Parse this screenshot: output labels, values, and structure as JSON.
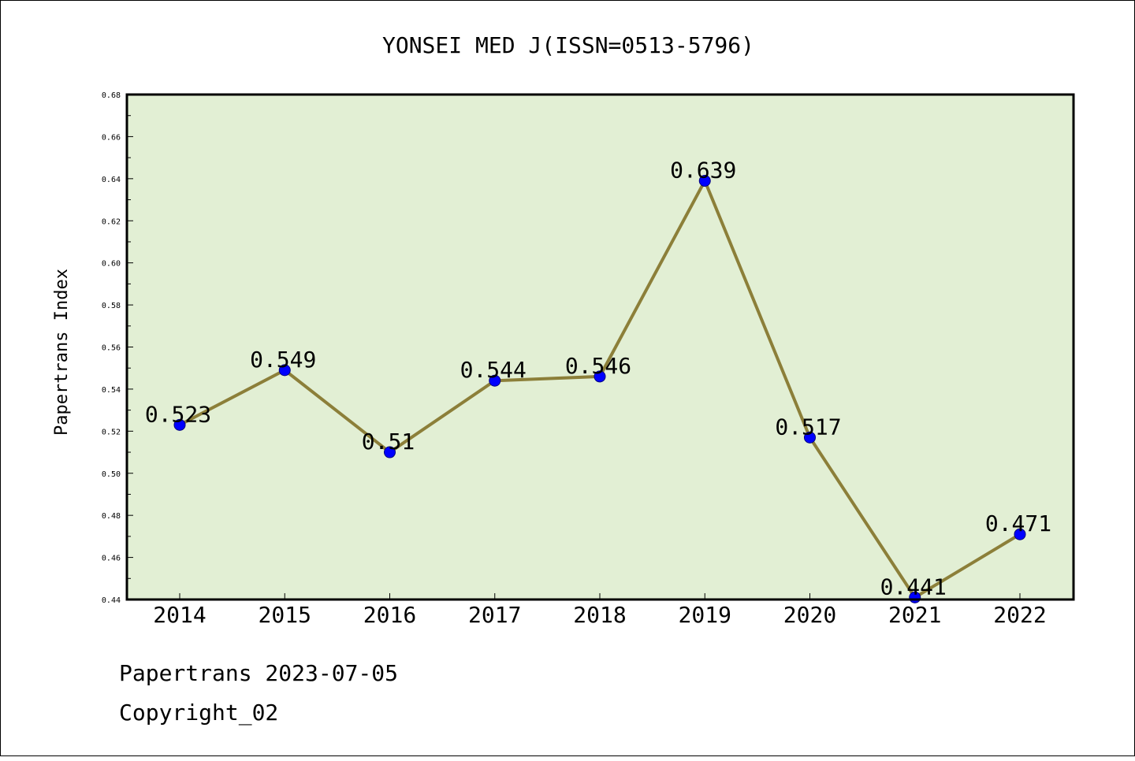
{
  "colors": {
    "plot_bg": "#e2efd4",
    "line": "#8c7f39",
    "marker": "#0000ff",
    "page_bg": "#ffffff",
    "axis": "#000000"
  },
  "chart_data": {
    "type": "line",
    "title": "YONSEI MED J(ISSN=0513-5796)",
    "xlabel": "",
    "ylabel": "Papertrans Index",
    "categories": [
      "2014",
      "2015",
      "2016",
      "2017",
      "2018",
      "2019",
      "2020",
      "2021",
      "2022"
    ],
    "values": [
      0.523,
      0.549,
      0.51,
      0.544,
      0.546,
      0.639,
      0.517,
      0.441,
      0.471
    ],
    "data_labels": [
      "0.523",
      "0.549",
      "0.51",
      "0.544",
      "0.546",
      "0.639",
      "0.517",
      "0.441",
      "0.471"
    ],
    "ylim": [
      0.44,
      0.68
    ],
    "yticks": [
      "0.44",
      "0.46",
      "0.48",
      "0.50",
      "0.52",
      "0.54",
      "0.56",
      "0.58",
      "0.60",
      "0.62",
      "0.64",
      "0.66",
      "0.68"
    ],
    "grid": false,
    "legend": "none"
  },
  "footer": {
    "line1": "Papertrans 2023-07-05",
    "line2": "Copyright_02"
  }
}
